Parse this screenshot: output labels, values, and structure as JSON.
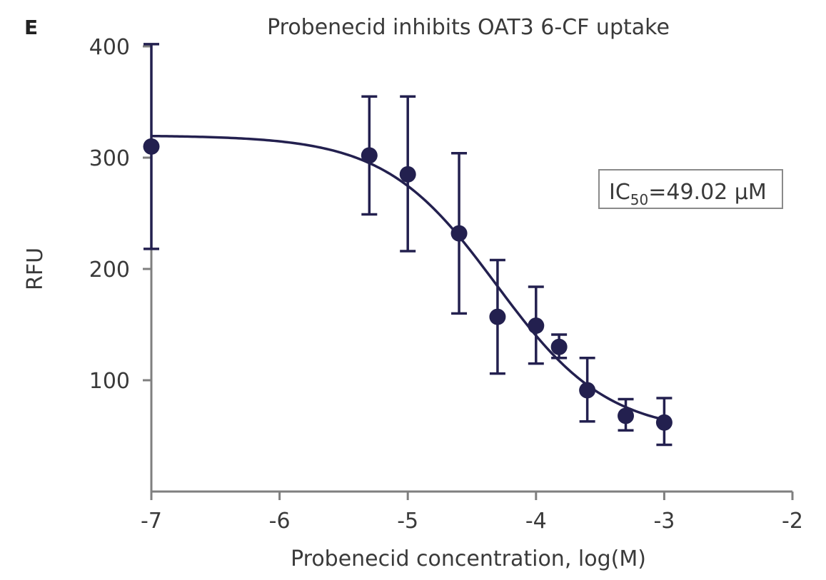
{
  "panel_label": "E",
  "chart_data": {
    "type": "scatter",
    "title": "Probenecid inhibits OAT3 6-CF uptake",
    "xlabel": "Probenecid concentration, log(M)",
    "ylabel": "RFU",
    "xlim": [
      -7,
      -2
    ],
    "ylim": [
      0,
      400
    ],
    "x_ticks": [
      -7,
      -6,
      -5,
      -4,
      -3,
      -2
    ],
    "x_tick_labels": [
      "-7",
      "-6",
      "-5",
      "-4",
      "-3",
      "-2"
    ],
    "y_ticks": [
      100,
      200,
      300,
      400
    ],
    "y_tick_labels": [
      "100",
      "200",
      "300",
      "400"
    ],
    "grid": false,
    "legend": "none",
    "marker_color": "#23204f",
    "axis_color": "#7f7f7f",
    "annotation": {
      "main": "IC",
      "subscript": "50",
      "rest": "=49.02 µM"
    },
    "series": [
      {
        "points": [
          {
            "x": -7.0,
            "y": 310,
            "err_low": 218,
            "err_high": 402
          },
          {
            "x": -5.3,
            "y": 302,
            "err_low": 249,
            "err_high": 355
          },
          {
            "x": -5.0,
            "y": 285,
            "err_low": 216,
            "err_high": 355
          },
          {
            "x": -4.6,
            "y": 232,
            "err_low": 160,
            "err_high": 304
          },
          {
            "x": -4.3,
            "y": 157,
            "err_low": 106,
            "err_high": 208
          },
          {
            "x": -4.0,
            "y": 149,
            "err_low": 115,
            "err_high": 184
          },
          {
            "x": -3.82,
            "y": 130,
            "err_low": 120,
            "err_high": 141
          },
          {
            "x": -3.6,
            "y": 91,
            "err_low": 63,
            "err_high": 120
          },
          {
            "x": -3.3,
            "y": 68,
            "err_low": 55,
            "err_high": 83
          },
          {
            "x": -3.0,
            "y": 62,
            "err_low": 42,
            "err_high": 84
          }
        ],
        "fit": {
          "top": 320,
          "bottom": 52,
          "log_ic50": -4.31,
          "hill": -1
        }
      }
    ]
  }
}
